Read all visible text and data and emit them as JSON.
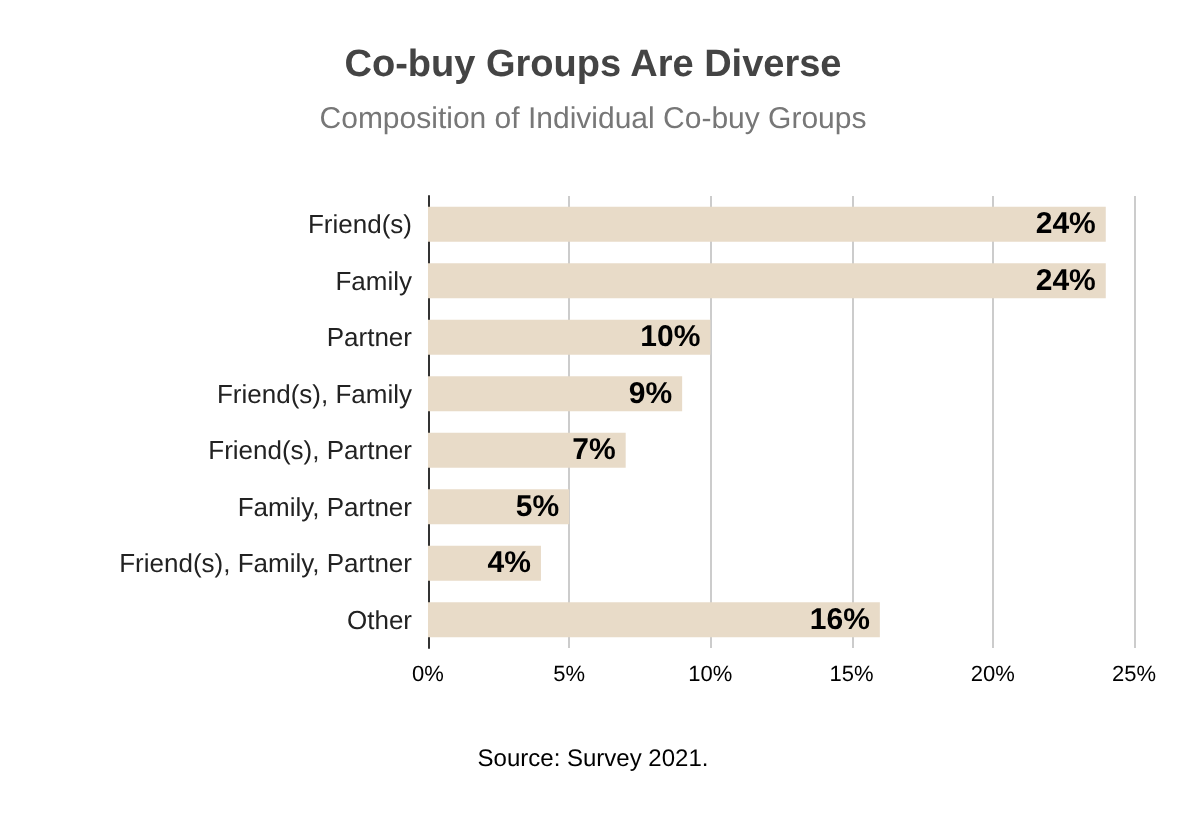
{
  "chart_data": {
    "type": "bar",
    "orientation": "horizontal",
    "title": "Co-buy Groups Are Diverse",
    "subtitle": "Composition of Individual Co-buy Groups",
    "categories": [
      "Friend(s)",
      "Family",
      "Partner",
      "Friend(s), Family",
      "Friend(s), Partner",
      "Family, Partner",
      "Friend(s), Family, Partner",
      "Other"
    ],
    "values": [
      24,
      24,
      10,
      9,
      7,
      5,
      4,
      16
    ],
    "color": "#e8dbc8",
    "value_labels": [
      "24%",
      "24%",
      "10%",
      "9%",
      "7%",
      "5%",
      "4%",
      "16%"
    ],
    "xlim": [
      0,
      25
    ],
    "xticks": [
      {
        "value": 0,
        "label": "0%"
      },
      {
        "value": 5,
        "label": "5%"
      },
      {
        "value": 10,
        "label": "10%"
      },
      {
        "value": 15,
        "label": "15%"
      },
      {
        "value": 20,
        "label": "20%"
      },
      {
        "value": 25,
        "label": "25%"
      }
    ],
    "grid": "x",
    "annotations": [
      "Source: Survey 2021."
    ]
  }
}
